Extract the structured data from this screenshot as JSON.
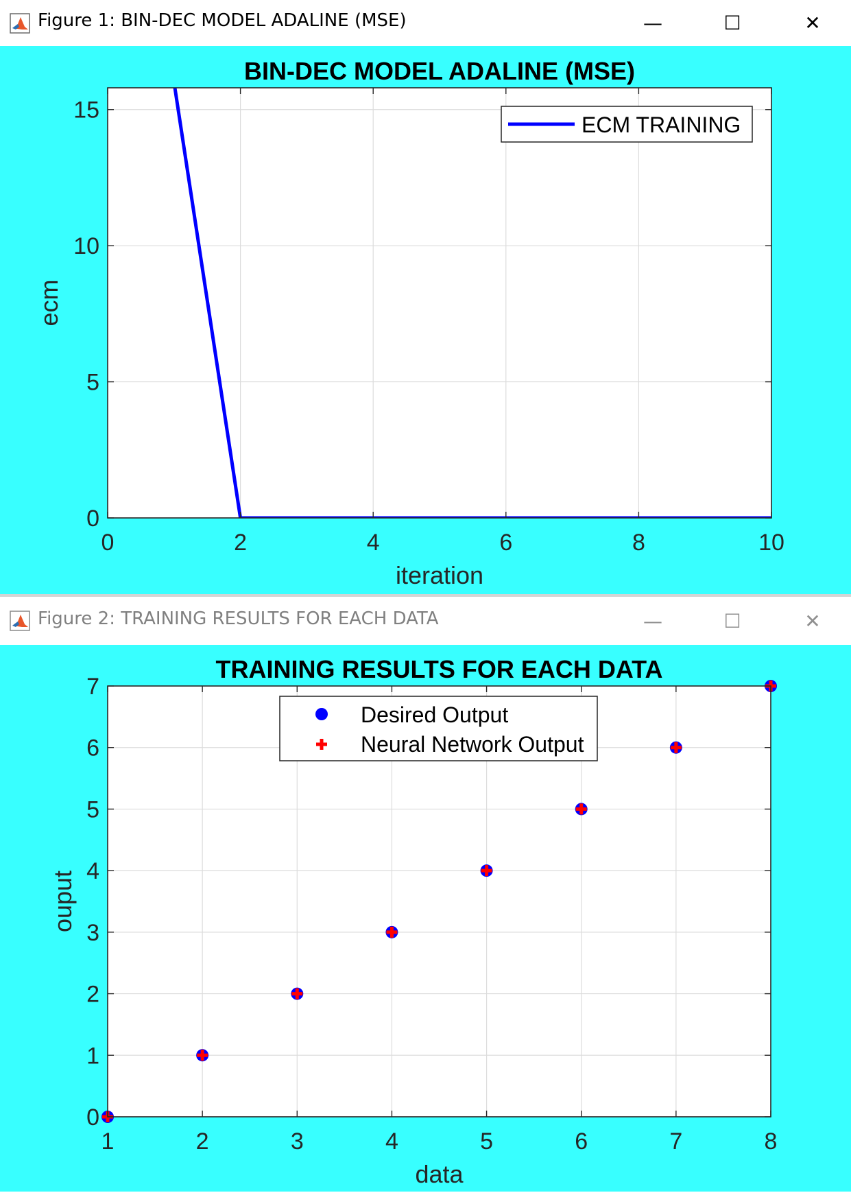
{
  "windows": [
    {
      "title": "Figure 1: BIN-DEC MODEL ADALINE (MSE)",
      "minimize": "—",
      "maximize": "☐",
      "close": "✕"
    },
    {
      "title": "Figure 2: TRAINING RESULTS FOR EACH DATA",
      "minimize": "—",
      "maximize": "☐",
      "close": "✕"
    }
  ],
  "colors": {
    "figure_bg": "#38FFFF",
    "line": "#0000FF",
    "desired": "#0000FF",
    "network": "#FF0000"
  },
  "chart_data": [
    {
      "type": "line",
      "title": "BIN-DEC MODEL ADALINE (MSE)",
      "xlabel": "iteration",
      "ylabel": "ecm",
      "xlim": [
        0,
        10
      ],
      "ylim": [
        0,
        15.8
      ],
      "xticks": [
        0,
        2,
        4,
        6,
        8,
        10
      ],
      "yticks": [
        0,
        5,
        10,
        15
      ],
      "grid": true,
      "legend_position": "top-right",
      "series": [
        {
          "name": "ECM TRAINING",
          "x": [
            1,
            2,
            3,
            4,
            5,
            6,
            7,
            8,
            9,
            10
          ],
          "y": [
            16,
            0,
            0,
            0,
            0,
            0,
            0,
            0,
            0,
            0
          ]
        }
      ]
    },
    {
      "type": "scatter",
      "title": "TRAINING RESULTS FOR EACH DATA",
      "xlabel": "data",
      "ylabel": "ouput",
      "xlim": [
        1,
        8
      ],
      "ylim": [
        0,
        7
      ],
      "xticks": [
        1,
        2,
        3,
        4,
        5,
        6,
        7,
        8
      ],
      "yticks": [
        0,
        1,
        2,
        3,
        4,
        5,
        6,
        7
      ],
      "grid": true,
      "legend_position": "top-center",
      "series": [
        {
          "name": "Desired Output",
          "marker": "circle",
          "x": [
            1,
            2,
            3,
            4,
            5,
            6,
            7,
            8
          ],
          "y": [
            0,
            1,
            2,
            3,
            4,
            5,
            6,
            7
          ]
        },
        {
          "name": "Neural Network Output",
          "marker": "plus",
          "x": [
            1,
            2,
            3,
            4,
            5,
            6,
            7,
            8
          ],
          "y": [
            0,
            1,
            2,
            3,
            4,
            5,
            6,
            7
          ]
        }
      ]
    }
  ]
}
